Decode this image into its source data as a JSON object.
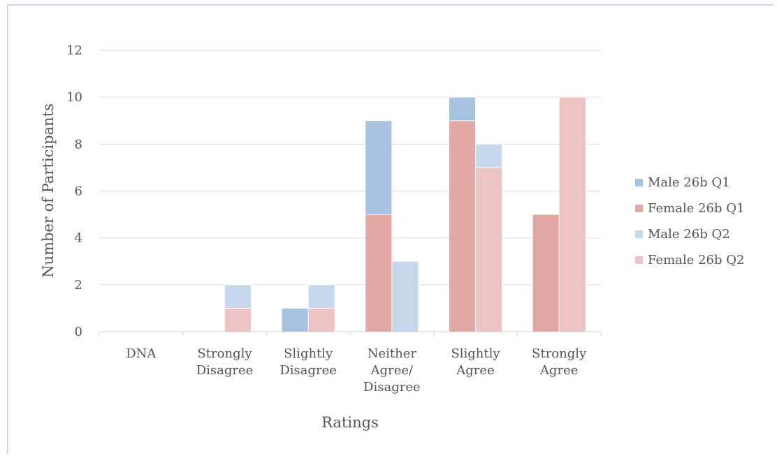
{
  "chart_data": {
    "type": "bar",
    "stacked_pairs": true,
    "categories": [
      [
        "DNA"
      ],
      [
        "Strongly",
        "Disagree"
      ],
      [
        "Slightly",
        "Disagree"
      ],
      [
        "Neither",
        "Agree/",
        "Disagree"
      ],
      [
        "Slightly",
        "Agree"
      ],
      [
        "Strongly",
        "Agree"
      ]
    ],
    "series": [
      {
        "name": "Male 26b Q1",
        "stack": "Q1",
        "color": "#a7c1e0",
        "values": [
          0,
          0,
          1,
          4,
          1,
          0
        ]
      },
      {
        "name": "Female 26b Q1",
        "stack": "Q1",
        "color": "#e3a7a4",
        "values": [
          0,
          0,
          0,
          5,
          9,
          5
        ]
      },
      {
        "name": "Male 26b Q2",
        "stack": "Q2",
        "color": "#c7d8ec",
        "values": [
          0,
          1,
          1,
          3,
          1,
          0
        ]
      },
      {
        "name": "Female 26b Q2",
        "stack": "Q2",
        "color": "#edc4c3",
        "values": [
          0,
          1,
          1,
          0,
          7,
          10
        ]
      }
    ],
    "xlabel": "Ratings",
    "ylabel": "Number of Participants",
    "ylim": [
      0,
      12
    ],
    "yticks": [
      0,
      2,
      4,
      6,
      8,
      10,
      12
    ],
    "grid": true,
    "legend": "right"
  }
}
